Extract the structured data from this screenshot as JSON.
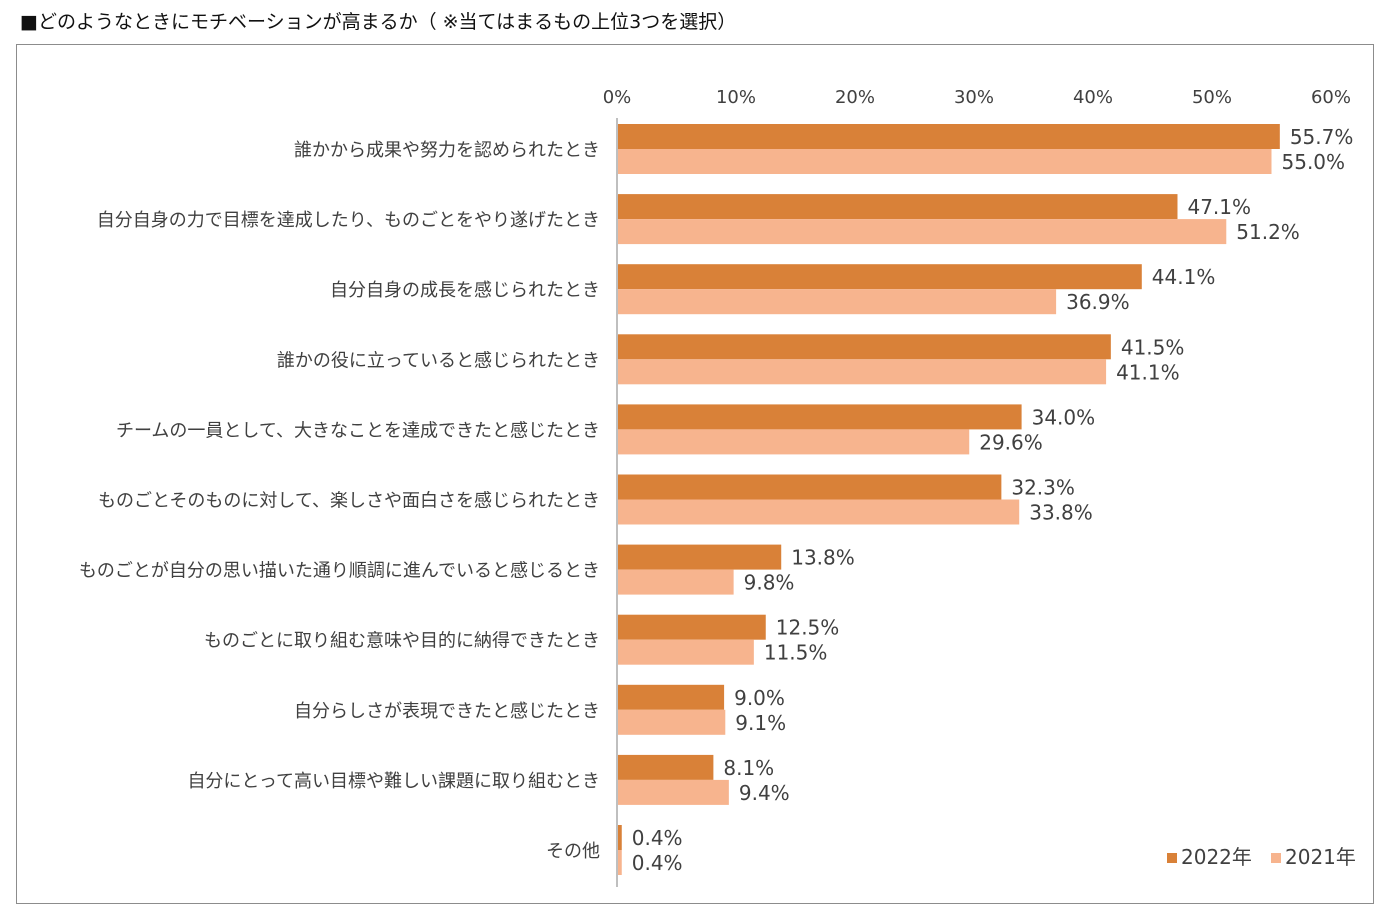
{
  "title": "■どのようなときにモチベーションが高まるか（ ※当てはまるもの上位3つを選択）",
  "colors": {
    "series_2022": "#D98138",
    "series_2021": "#F7B48E",
    "axis": "#BFBFBF",
    "frame": "#8C8C8C",
    "text": "#404040"
  },
  "chart_data": {
    "type": "bar",
    "orientation": "horizontal",
    "title": "",
    "xlabel": "",
    "ylabel": "",
    "xlim": [
      0,
      60
    ],
    "ticks": [
      0,
      10,
      20,
      30,
      40,
      50,
      60
    ],
    "tick_labels": [
      "0%",
      "10%",
      "20%",
      "30%",
      "40%",
      "50%",
      "60%"
    ],
    "grid": false,
    "legend_position": "bottom-right",
    "categories": [
      "誰かから成果や努力を認められたとき",
      "自分自身の力で目標を達成したり、ものごとをやり遂げたとき",
      "自分自身の成長を感じられたとき",
      "誰かの役に立っていると感じられたとき",
      "チームの一員として、大きなことを達成できたと感じたとき",
      "ものごとそのものに対して、楽しさや面白さを感じられたとき",
      "ものごとが自分の思い描いた通り順調に進んでいると感じるとき",
      "ものごとに取り組む意味や目的に納得できたとき",
      "自分らしさが表現できたと感じたとき",
      "自分にとって高い目標や難しい課題に取り組むとき",
      "その他"
    ],
    "series": [
      {
        "name": "2022年",
        "values": [
          55.7,
          47.1,
          44.1,
          41.5,
          34.0,
          32.3,
          13.8,
          12.5,
          9.0,
          8.1,
          0.4
        ],
        "labels": [
          "55.7%",
          "47.1%",
          "44.1%",
          "41.5%",
          "34.0%",
          "32.3%",
          "13.8%",
          "12.5%",
          "9.0%",
          "8.1%",
          "0.4%"
        ]
      },
      {
        "name": "2021年",
        "values": [
          55.0,
          51.2,
          36.9,
          41.1,
          29.6,
          33.8,
          9.8,
          11.5,
          9.1,
          9.4,
          0.4
        ],
        "labels": [
          "55.0%",
          "51.2%",
          "36.9%",
          "41.1%",
          "29.6%",
          "33.8%",
          "9.8%",
          "11.5%",
          "9.1%",
          "9.4%",
          "0.4%"
        ]
      }
    ]
  }
}
